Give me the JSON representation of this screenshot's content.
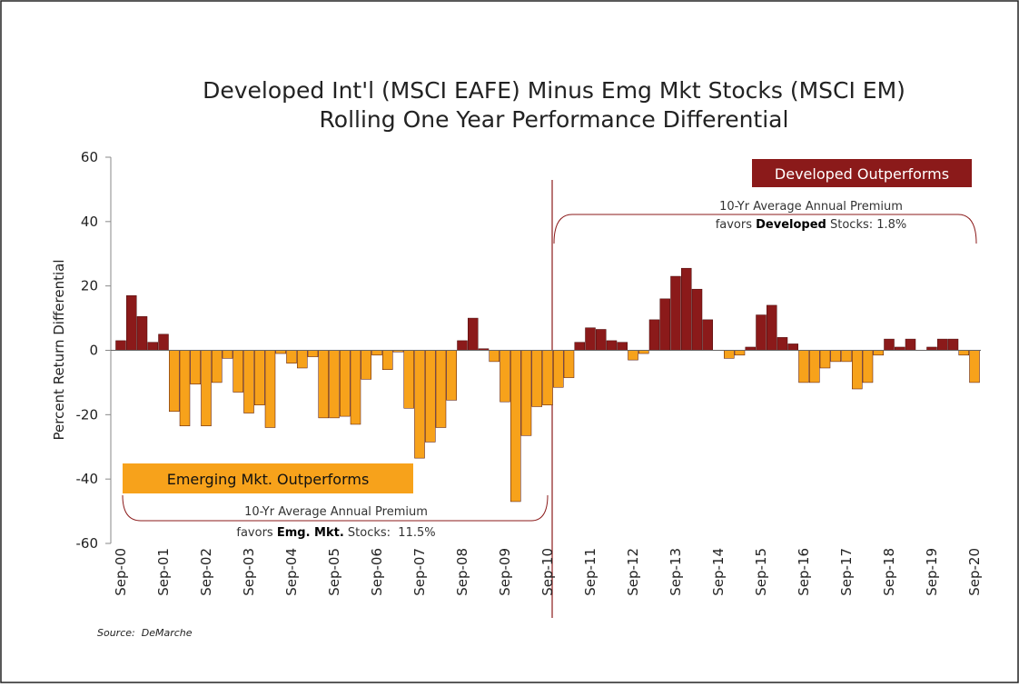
{
  "chart_data": {
    "type": "bar",
    "title": "Developed Int'l (MSCI EAFE) Minus Emg Mkt Stocks (MSCI EM)",
    "subtitle": "Rolling One Year Performance Differential",
    "y_label": "Percent Return Differential",
    "source": "Source:  DeMarche",
    "categories": [
      "Sep-00",
      null,
      null,
      null,
      "Sep-01",
      null,
      null,
      null,
      "Sep-02",
      null,
      null,
      null,
      "Sep-03",
      null,
      null,
      null,
      "Sep-04",
      null,
      null,
      null,
      "Sep-05",
      null,
      null,
      null,
      "Sep-06",
      null,
      null,
      null,
      "Sep-07",
      null,
      null,
      null,
      "Sep-08",
      null,
      null,
      null,
      "Sep-09",
      null,
      null,
      null,
      "Sep-10",
      null,
      null,
      null,
      "Sep-11",
      null,
      null,
      null,
      "Sep-12",
      null,
      null,
      null,
      "Sep-13",
      null,
      null,
      null,
      "Sep-14",
      null,
      null,
      null,
      "Sep-15",
      null,
      null,
      null,
      "Sep-16",
      null,
      null,
      null,
      "Sep-17",
      null,
      null,
      null,
      "Sep-18",
      null,
      null,
      null,
      "Sep-19",
      null,
      null,
      null,
      "Sep-20"
    ],
    "values": [
      3,
      17,
      10.5,
      2.5,
      5,
      -19,
      -23.5,
      -10.5,
      -23.5,
      -10,
      -2.5,
      -13,
      -19.5,
      -17,
      -24,
      -1,
      -4,
      -5.5,
      -2,
      -21,
      -21,
      -20.5,
      -23,
      -9,
      -1.5,
      -6,
      -0.5,
      -18,
      -33.5,
      -28.5,
      -24,
      -15.5,
      3,
      10,
      0.5,
      -3.5,
      -16,
      -47,
      -26.5,
      -17.5,
      -17,
      -11.5,
      -8.5,
      2.5,
      7,
      6.5,
      3,
      2.5,
      -3,
      -1,
      9.5,
      16,
      23,
      25.5,
      19,
      9.5,
      0,
      -2.5,
      -1.5,
      1,
      11,
      14,
      4,
      2,
      -10,
      -10,
      -5.5,
      -3.5,
      -3.5,
      -12,
      -10,
      -1.5,
      3.5,
      1,
      3.5,
      0,
      1,
      3.5,
      3.5,
      -1.5,
      -10
    ],
    "positive_color": "#8b1a1a",
    "negative_color": "#f7a21b",
    "ylim": [
      -60,
      60
    ],
    "yticks": [
      -60,
      -40,
      -20,
      0,
      20,
      40,
      60
    ],
    "annotations": {
      "developed_box": "Developed Outperforms",
      "developed_note": [
        "10-Yr Average Annual Premium",
        "favors ",
        "Developed",
        " Stocks: 1.8%"
      ],
      "emerging_box": "Emerging Mkt. Outperforms",
      "emerging_note": [
        "10-Yr Average Annual Premium",
        "favors ",
        "Emg. Mkt.",
        " Stocks:  11.5%"
      ]
    }
  }
}
